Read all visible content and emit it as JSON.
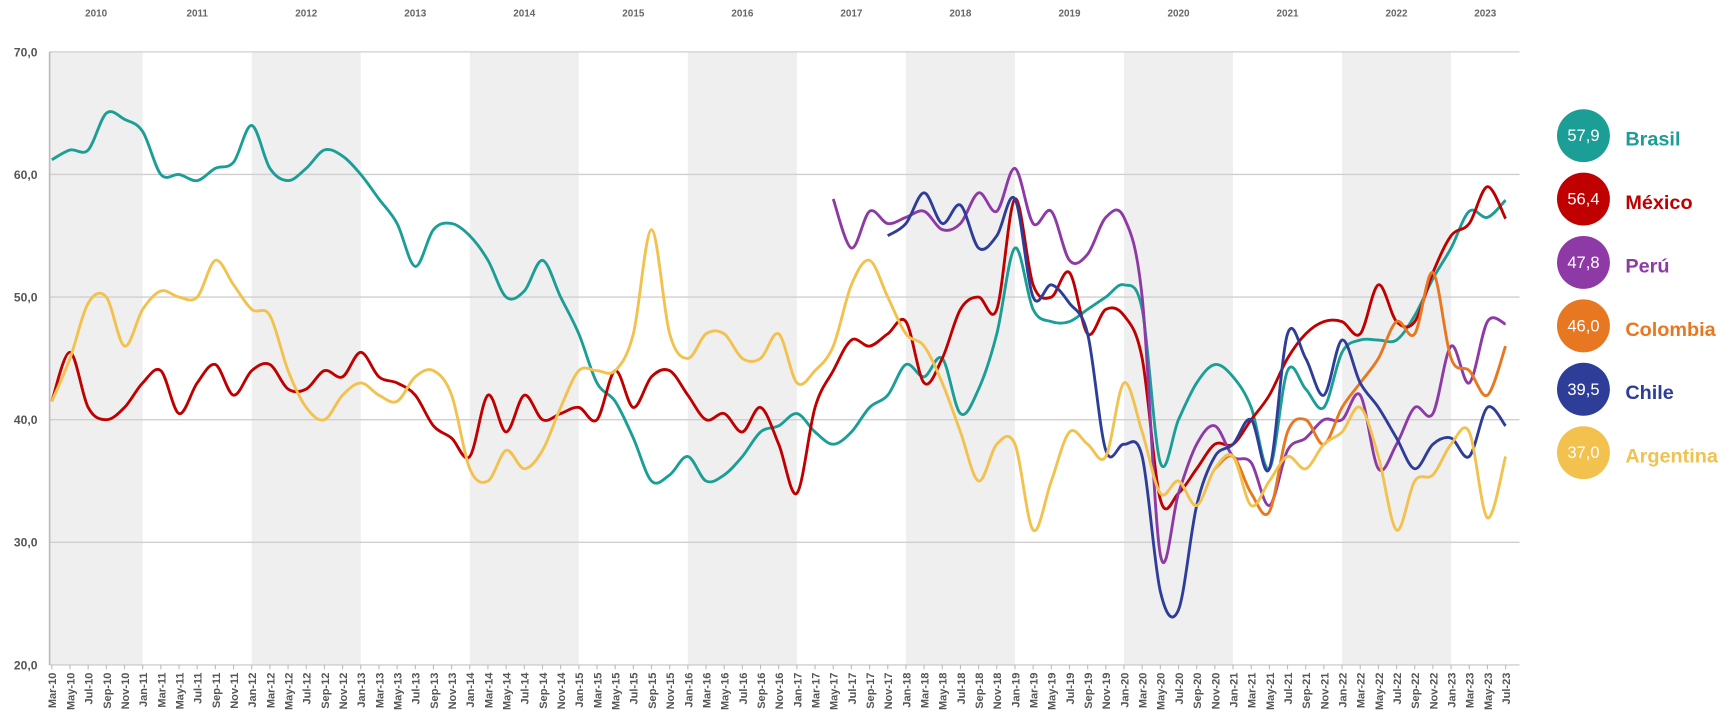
{
  "chart_data": {
    "type": "line",
    "years": [
      2010,
      2011,
      2012,
      2013,
      2014,
      2015,
      2016,
      2017,
      2018,
      2019,
      2020,
      2021,
      2022,
      2023
    ],
    "band_shading": true,
    "categories": [
      "Mar-10",
      "May-10",
      "Jul-10",
      "Sep-10",
      "Nov-10",
      "Jan-11",
      "Mar-11",
      "May-11",
      "Jul-11",
      "Sep-11",
      "Nov-11",
      "Jan-12",
      "Mar-12",
      "May-12",
      "Jul-12",
      "Sep-12",
      "Nov-12",
      "Jan-13",
      "Mar-13",
      "May-13",
      "Jul-13",
      "Sep-13",
      "Nov-13",
      "Jan-14",
      "Mar-14",
      "May-14",
      "Jul-14",
      "Sep-14",
      "Nov-14",
      "Jan-15",
      "Mar-15",
      "May-15",
      "Jul-15",
      "Sep-15",
      "Nov-15",
      "Jan-16",
      "Mar-16",
      "May-16",
      "Jul-16",
      "Sep-16",
      "Nov-16",
      "Jan-17",
      "Mar-17",
      "May-17",
      "Jul-17",
      "Sep-17",
      "Nov-17",
      "Jan-18",
      "Mar-18",
      "May-18",
      "Jul-18",
      "Sep-18",
      "Nov-18",
      "Jan-19",
      "Mar-19",
      "May-19",
      "Jul-19",
      "Sep-19",
      "Nov-19",
      "Jan-20",
      "Mar-20",
      "May-20",
      "Jul-20",
      "Sep-20",
      "Nov-20",
      "Jan-21",
      "Mar-21",
      "May-21",
      "Jul-21",
      "Sep-21",
      "Nov-21",
      "Jan-22",
      "Mar-22",
      "May-22",
      "Jul-22",
      "Sep-22",
      "Nov-22",
      "Jan-23",
      "Mar-23",
      "May-23",
      "Jul-23"
    ],
    "ylim": [
      20,
      70
    ],
    "yticks": [
      {
        "value": 20,
        "label": "20,0"
      },
      {
        "value": 30,
        "label": "30,0"
      },
      {
        "value": 40,
        "label": "40,0"
      },
      {
        "value": 50,
        "label": "50,0"
      },
      {
        "value": 60,
        "label": "60,0"
      },
      {
        "value": 70,
        "label": "70,0"
      }
    ],
    "grid": true,
    "series": [
      {
        "name": "Brasil",
        "color": "#1a9e96",
        "last_value": {
          "value": 57.9,
          "label": "57,9"
        },
        "values": [
          61.2,
          62,
          62,
          65,
          64.5,
          63.5,
          60,
          60,
          59.5,
          60.5,
          61,
          64,
          60.5,
          59.5,
          60.5,
          62,
          61.5,
          60,
          58,
          56,
          52.5,
          55.5,
          56,
          55,
          53,
          50,
          50.5,
          53,
          50,
          47,
          43,
          41.5,
          38.5,
          35,
          35.5,
          37,
          35,
          35.5,
          37,
          39,
          39.5,
          40.5,
          39,
          38,
          39,
          41,
          42,
          44.5,
          43.5,
          45,
          40.5,
          42.5,
          47,
          54,
          49,
          48,
          48,
          49,
          50,
          51,
          49,
          36.5,
          40,
          43,
          44.5,
          43.5,
          41,
          36,
          44,
          42.5,
          41,
          45.5,
          46.5,
          46.5,
          46.5,
          48.5,
          51.5,
          54,
          57,
          56.5,
          57.9
        ]
      },
      {
        "name": "México",
        "color": "#c00000",
        "last_value": {
          "value": 56.4,
          "label": "56,4"
        },
        "values": [
          41.5,
          45.5,
          41,
          40,
          41,
          43,
          44,
          40.5,
          43,
          44.5,
          42,
          44,
          44.5,
          42.5,
          42.5,
          44,
          43.5,
          45.5,
          43.5,
          43,
          42,
          39.5,
          38.5,
          37,
          42,
          39,
          42,
          40,
          40.5,
          41,
          40,
          44,
          41,
          43.5,
          44,
          42,
          40,
          40.5,
          39,
          41,
          38,
          34,
          41,
          44,
          46.5,
          46,
          47,
          48,
          43,
          45,
          49,
          50,
          49,
          58,
          51,
          50,
          52,
          47,
          49,
          48.5,
          45,
          33.5,
          34,
          36,
          38,
          38,
          40,
          42,
          45,
          47,
          48,
          48,
          47,
          51,
          48,
          48,
          52,
          55,
          56,
          59,
          56.4
        ]
      },
      {
        "name": "Perú",
        "color": "#8e3aa6",
        "last_value": {
          "value": 47.8,
          "label": "47,8"
        },
        "values": [
          null,
          null,
          null,
          null,
          null,
          null,
          null,
          null,
          null,
          null,
          null,
          null,
          null,
          null,
          null,
          null,
          null,
          null,
          null,
          null,
          null,
          null,
          null,
          null,
          null,
          null,
          null,
          null,
          null,
          null,
          null,
          null,
          null,
          null,
          null,
          null,
          null,
          null,
          null,
          null,
          null,
          null,
          null,
          58,
          54,
          57,
          56,
          56.5,
          57,
          55.5,
          56,
          58.5,
          57,
          60.5,
          56,
          57,
          53,
          53.5,
          56.5,
          56.5,
          50,
          29,
          34,
          38,
          39.5,
          37,
          36.5,
          33,
          37.5,
          38.5,
          40,
          40,
          42,
          36,
          38,
          41,
          40.5,
          46,
          43,
          48,
          47.8
        ]
      },
      {
        "name": "Colombia",
        "color": "#e87722",
        "last_value": {
          "value": 46.0,
          "label": "46,0"
        },
        "values": [
          null,
          null,
          null,
          null,
          null,
          null,
          null,
          null,
          null,
          null,
          null,
          null,
          null,
          null,
          null,
          null,
          null,
          null,
          null,
          null,
          null,
          null,
          null,
          null,
          null,
          null,
          null,
          null,
          null,
          null,
          null,
          null,
          null,
          null,
          null,
          null,
          null,
          null,
          null,
          null,
          null,
          null,
          null,
          null,
          null,
          null,
          null,
          null,
          null,
          null,
          null,
          null,
          null,
          null,
          null,
          null,
          null,
          null,
          null,
          null,
          null,
          null,
          null,
          null,
          36,
          37,
          34,
          32.5,
          39,
          40,
          38,
          41,
          43,
          45,
          48,
          47,
          52,
          45,
          44,
          42,
          46
        ]
      },
      {
        "name": "Chile",
        "color": "#2e3d98",
        "last_value": {
          "value": 39.5,
          "label": "39,5"
        },
        "values": [
          null,
          null,
          null,
          null,
          null,
          null,
          null,
          null,
          null,
          null,
          null,
          null,
          null,
          null,
          null,
          null,
          null,
          null,
          null,
          null,
          null,
          null,
          null,
          null,
          null,
          null,
          null,
          null,
          null,
          null,
          null,
          null,
          null,
          null,
          null,
          null,
          null,
          null,
          null,
          null,
          null,
          null,
          null,
          null,
          null,
          null,
          55,
          56,
          58.5,
          56,
          57.5,
          54,
          55,
          58,
          50,
          51,
          49.5,
          47,
          37.5,
          38,
          37,
          26,
          24.5,
          33,
          37,
          38,
          40,
          36,
          47,
          45,
          42,
          46.5,
          43,
          41,
          38.5,
          36,
          38,
          38.5,
          37,
          41,
          39.5
        ]
      },
      {
        "name": "Argentina",
        "color": "#f2c14e",
        "last_value": {
          "value": 37.0,
          "label": "37,0"
        },
        "values": [
          41.5,
          45,
          49.5,
          50,
          46,
          49,
          50.5,
          50,
          50,
          53,
          51,
          49,
          48.5,
          44,
          41,
          40,
          42,
          43,
          42,
          41.5,
          43.5,
          44,
          42,
          36,
          35,
          37.5,
          36,
          37.5,
          41,
          44,
          44,
          44,
          47,
          55.5,
          47,
          45,
          47,
          47,
          45,
          45,
          47,
          43,
          44,
          46,
          51,
          53,
          50,
          47,
          46,
          43,
          39,
          35,
          38,
          38,
          31,
          35,
          39,
          38,
          37,
          43,
          39,
          34,
          35,
          33,
          36,
          37,
          33,
          35,
          37,
          36,
          38,
          39,
          41,
          37,
          31,
          35,
          35.5,
          38,
          39,
          32,
          37
        ]
      }
    ]
  }
}
